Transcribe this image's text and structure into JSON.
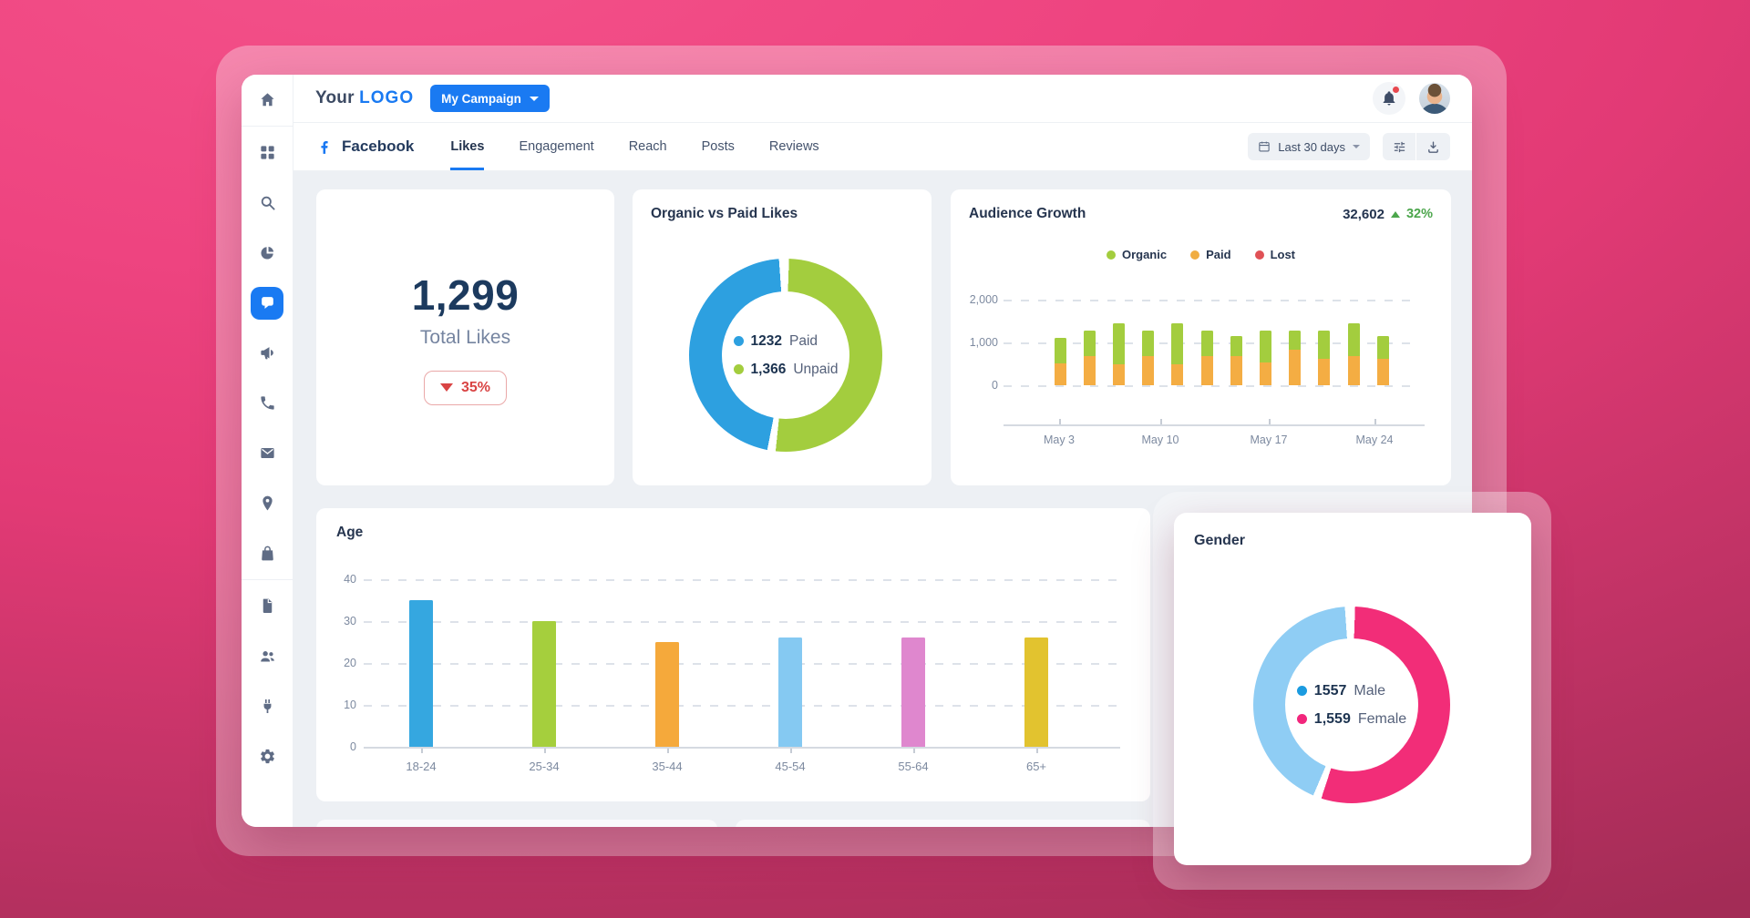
{
  "theme": {
    "accent_blue": "#1a7af2",
    "facebook_blue": "#1877f2",
    "navy_text": "#243b5e",
    "muted_text": "#7d8aa0",
    "background_pink": "#e83a76",
    "negative_red": "#d94444",
    "positive_green": "#4ca64c"
  },
  "header": {
    "logo_prefix": "Your",
    "logo_suffix": "LOGO",
    "campaign_button_label": "My Campaign"
  },
  "sidebar": {
    "active": "messages",
    "items": [
      {
        "icon": "home",
        "name": "home"
      },
      {
        "divider": true
      },
      {
        "icon": "grid",
        "name": "dashboard"
      },
      {
        "icon": "search",
        "name": "search"
      },
      {
        "icon": "pie",
        "name": "analytics"
      },
      {
        "icon": "chat",
        "name": "messages"
      },
      {
        "icon": "megaphone",
        "name": "campaigns"
      },
      {
        "icon": "phone",
        "name": "calls"
      },
      {
        "icon": "mail",
        "name": "email"
      },
      {
        "icon": "pin",
        "name": "locations"
      },
      {
        "icon": "bag",
        "name": "store"
      },
      {
        "divider": true
      },
      {
        "icon": "file",
        "name": "reports"
      },
      {
        "icon": "users",
        "name": "audience"
      },
      {
        "icon": "plug",
        "name": "integrations"
      },
      {
        "icon": "gear",
        "name": "settings"
      }
    ]
  },
  "tabbar": {
    "brand": "Facebook",
    "tabs": [
      "Likes",
      "Engagement",
      "Reach",
      "Posts",
      "Reviews"
    ],
    "active_tab": "Likes",
    "date_range_label": "Last 30 days"
  },
  "cards": {
    "total_likes": {
      "value": "1,299",
      "label": "Total Likes",
      "delta": "35%",
      "delta_direction": "down"
    },
    "organic_vs_paid": {
      "title": "Organic vs Paid Likes"
    },
    "audience_growth": {
      "title": "Audience Growth",
      "total": "32,602",
      "delta": "32%",
      "delta_direction": "up"
    },
    "age": {
      "title": "Age"
    },
    "gender": {
      "title": "Gender"
    }
  },
  "chart_data": [
    {
      "type": "pie",
      "donut": true,
      "title": "Organic vs Paid Likes",
      "labels": [
        "Paid",
        "Unpaid"
      ],
      "values": [
        1232,
        1366
      ],
      "colors": [
        "#2da0e0",
        "#a3cd3e"
      ],
      "slices": [
        {
          "label": "Unpaid",
          "color": "#a3cd3e",
          "start_deg": 2,
          "end_deg": 186
        },
        {
          "label": "Paid",
          "color": "#2da0e0",
          "start_deg": 191,
          "end_deg": 356
        }
      ],
      "legend": [
        {
          "display": "1232",
          "label": "Paid",
          "dot_color": "#2da0e0"
        },
        {
          "display": "1,366",
          "label": "Unpaid",
          "dot_color": "#a3cd3e"
        }
      ]
    },
    {
      "type": "bar",
      "stacked": true,
      "title": "Audience Growth",
      "total_display": "32,602",
      "delta_display": "32%",
      "legend": [
        {
          "label": "Organic",
          "color": "#a3cd3e"
        },
        {
          "label": "Paid",
          "color": "#f0ad42"
        },
        {
          "label": "Lost",
          "color": "#e05156"
        }
      ],
      "series": [
        {
          "name": "Paid",
          "color": "#f4ad43",
          "values": [
            500,
            680,
            480,
            690,
            490,
            680,
            680,
            540,
            840,
            620,
            680,
            620
          ]
        },
        {
          "name": "Organic",
          "color": "#a3cd3e",
          "values": [
            600,
            590,
            970,
            580,
            960,
            590,
            470,
            730,
            430,
            650,
            770,
            530
          ]
        },
        {
          "name": "Lost",
          "color": "#e05156",
          "values": [
            0,
            0,
            0,
            0,
            0,
            0,
            0,
            0,
            0,
            0,
            0,
            0
          ]
        }
      ],
      "ylim": [
        0,
        2000
      ],
      "yticks": [
        "2,000",
        "1,000",
        "0"
      ],
      "xticks": [
        "May 3",
        "May 10",
        "May 17",
        "May 24"
      ],
      "grid": "dashed",
      "legend_position": "top-center"
    },
    {
      "type": "bar",
      "title": "Age",
      "categories": [
        "18-24",
        "25-34",
        "35-44",
        "45-54",
        "55-64",
        "65+"
      ],
      "values": [
        35,
        30,
        25,
        26,
        26,
        26
      ],
      "colors": [
        "#35a7e0",
        "#a5cf3d",
        "#f5a93b",
        "#85c9f2",
        "#df87ce",
        "#e2c32f"
      ],
      "ylim": [
        0,
        40
      ],
      "yticks": [
        "40",
        "30",
        "20",
        "10",
        "0"
      ],
      "grid": "dashed"
    },
    {
      "type": "pie",
      "donut": true,
      "title": "Gender",
      "labels": [
        "Male",
        "Female"
      ],
      "values": [
        1557,
        1559
      ],
      "colors": [
        "#8fcdf4",
        "#f22d78"
      ],
      "slices": [
        {
          "label": "Female",
          "color": "#f22d78",
          "start_deg": 2,
          "end_deg": 198
        },
        {
          "label": "Male",
          "color": "#8fcdf4",
          "start_deg": 203,
          "end_deg": 356
        }
      ],
      "legend": [
        {
          "display": "1557",
          "label": "Male",
          "dot_color": "#1b9be0"
        },
        {
          "display": "1,559",
          "label": "Female",
          "dot_color": "#f2267c"
        }
      ]
    }
  ]
}
